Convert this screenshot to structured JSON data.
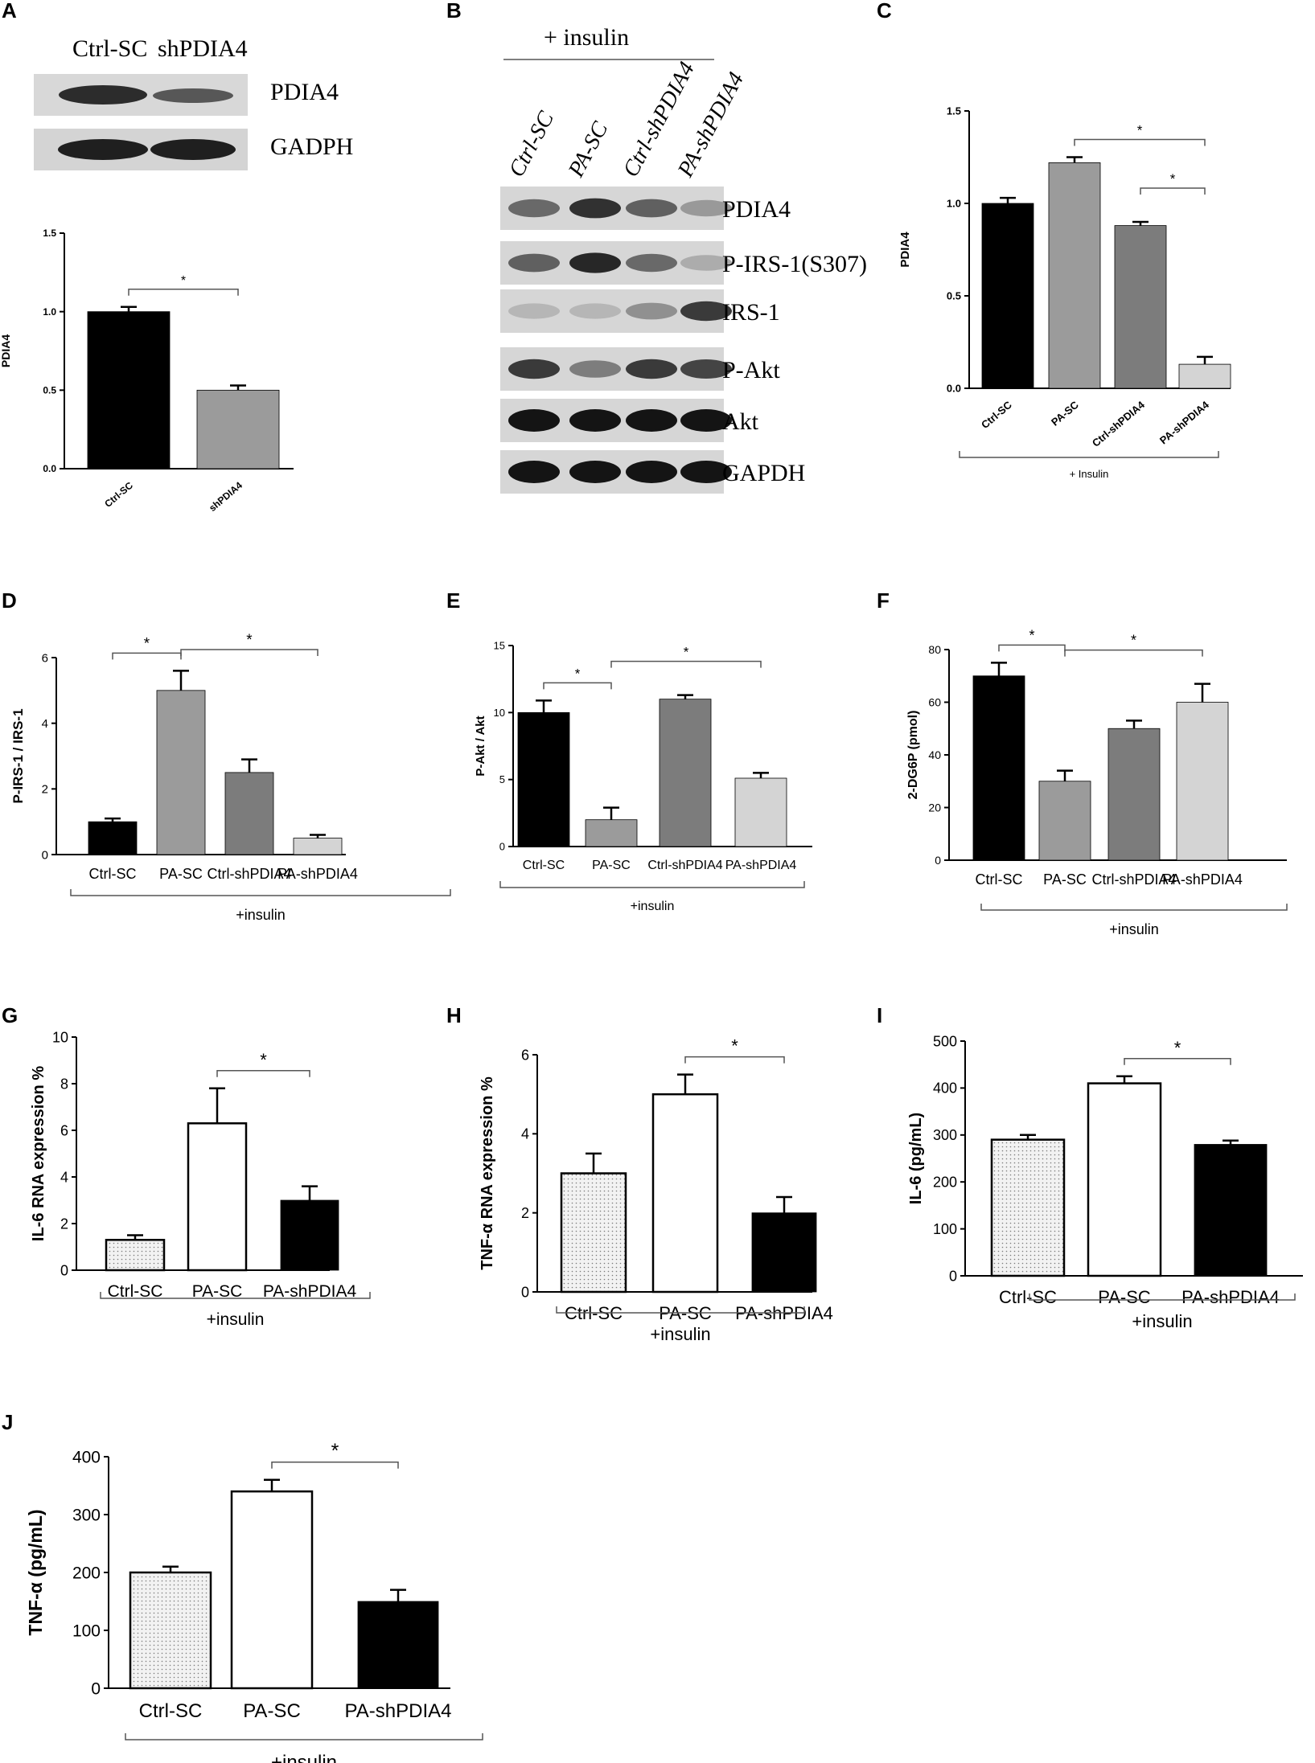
{
  "panel_letters": [
    "A",
    "B",
    "C",
    "D",
    "E",
    "F",
    "G",
    "H",
    "I",
    "J"
  ],
  "blot_a": {
    "lanes": [
      "Ctrl-SC",
      "shPDIA4"
    ],
    "bands": [
      "PDIA4",
      "GADPH"
    ]
  },
  "blot_b": {
    "header": "+ insulin",
    "lanes": [
      "Ctrl-SC",
      "PA-SC",
      "Ctrl-shPDIA4",
      "PA-shPDIA4"
    ],
    "bands": [
      "PDIA4",
      "P-IRS-1(S307)",
      "IRS-1",
      "P-Akt",
      "Akt",
      "GAPDH"
    ]
  },
  "colors": {
    "black": "#000000",
    "mid_gray": "#9b9b9b",
    "dark_gray": "#7c7c7c",
    "light_gray": "#d4d4d4",
    "dotted_fill": "#ececec"
  },
  "chart_data": [
    {
      "panel": "A",
      "type": "bar",
      "categories": [
        "Ctrl-SC",
        "shPDIA4"
      ],
      "values": [
        1.0,
        0.5
      ],
      "errors": [
        0.03,
        0.03
      ],
      "fills": [
        "black",
        "mid_gray"
      ],
      "ylabel": "PDIA4",
      "ylim": [
        0,
        1.5
      ],
      "yticks": [
        "0.0",
        "0.5",
        "1.0",
        "1.5"
      ],
      "significance": [
        {
          "between": [
            0,
            1
          ],
          "label": "*"
        }
      ],
      "group_label": ""
    },
    {
      "panel": "C",
      "type": "bar",
      "categories": [
        "Ctrl-SC",
        "PA-SC",
        "Ctrl-shPDIA4",
        "PA-shPDIA4"
      ],
      "values": [
        1.0,
        1.22,
        0.88,
        0.13
      ],
      "errors": [
        0.03,
        0.03,
        0.02,
        0.04
      ],
      "fills": [
        "black",
        "mid_gray",
        "dark_gray",
        "light_gray"
      ],
      "ylabel": "PDIA4",
      "ylim": [
        0,
        1.5
      ],
      "yticks": [
        "0.0",
        "0.5",
        "1.0",
        "1.5"
      ],
      "significance": [
        {
          "between": [
            1,
            3
          ],
          "label": "*"
        },
        {
          "between": [
            2,
            3
          ],
          "label": "*"
        }
      ],
      "group_label": "+ Insulin"
    },
    {
      "panel": "D",
      "type": "bar",
      "categories": [
        "Ctrl-SC",
        "PA-SC",
        "Ctrl-shPDIA4",
        "PA-shPDIA4"
      ],
      "values": [
        1.0,
        5.0,
        2.5,
        0.5
      ],
      "errors": [
        0.1,
        0.6,
        0.4,
        0.1
      ],
      "fills": [
        "black",
        "mid_gray",
        "dark_gray",
        "light_gray"
      ],
      "ylabel": "P-IRS-1 / IRS-1",
      "ylim": [
        0,
        6
      ],
      "yticks": [
        "0",
        "2",
        "4",
        "6"
      ],
      "significance": [
        {
          "between": [
            0,
            1
          ],
          "label": "*"
        },
        {
          "between": [
            1,
            3
          ],
          "label": "*"
        }
      ],
      "group_label": "+insulin"
    },
    {
      "panel": "E",
      "type": "bar",
      "categories": [
        "Ctrl-SC",
        "PA-SC",
        "Ctrl-shPDIA4",
        "PA-shPDIA4"
      ],
      "values": [
        10.0,
        2.0,
        11.0,
        5.1
      ],
      "errors": [
        0.9,
        0.9,
        0.3,
        0.4
      ],
      "fills": [
        "black",
        "mid_gray",
        "dark_gray",
        "light_gray"
      ],
      "ylabel": "P-Akt / Akt",
      "ylim": [
        0,
        15
      ],
      "yticks": [
        "0",
        "5",
        "10",
        "15"
      ],
      "significance": [
        {
          "between": [
            0,
            1
          ],
          "label": "*"
        },
        {
          "between": [
            1,
            3
          ],
          "label": "*"
        }
      ],
      "group_label": "+insulin"
    },
    {
      "panel": "F",
      "type": "bar",
      "categories": [
        "Ctrl-SC",
        "PA-SC",
        "Ctrl-shPDIA4",
        "PA-shPDIA4"
      ],
      "values": [
        70,
        30,
        50,
        60
      ],
      "errors": [
        5,
        4,
        3,
        7
      ],
      "fills": [
        "black",
        "mid_gray",
        "dark_gray",
        "light_gray"
      ],
      "ylabel": "2-DG6P (pmol)",
      "ylim": [
        0,
        80
      ],
      "yticks": [
        "0",
        "20",
        "40",
        "60",
        "80"
      ],
      "significance": [
        {
          "between": [
            0,
            1
          ],
          "label": "*"
        },
        {
          "between": [
            1,
            3
          ],
          "label": "*"
        }
      ],
      "group_label": "+insulin"
    },
    {
      "panel": "G",
      "type": "bar",
      "categories": [
        "Ctrl-SC",
        "PA-SC",
        "PA-shPDIA4"
      ],
      "values": [
        1.3,
        6.3,
        3.0
      ],
      "errors": [
        0.2,
        1.5,
        0.6
      ],
      "fills": [
        "dotted",
        "white",
        "black"
      ],
      "ylabel": "IL-6 RNA expression %",
      "ylim": [
        0,
        10
      ],
      "yticks": [
        "0",
        "2",
        "4",
        "6",
        "8",
        "10"
      ],
      "significance": [
        {
          "between": [
            1,
            2
          ],
          "label": "*"
        }
      ],
      "group_label": "+insulin"
    },
    {
      "panel": "H",
      "type": "bar",
      "categories": [
        "Ctrl-SC",
        "PA-SC",
        "PA-shPDIA4"
      ],
      "values": [
        3.0,
        5.0,
        2.0
      ],
      "errors": [
        0.5,
        0.5,
        0.4
      ],
      "fills": [
        "dotted",
        "white",
        "black"
      ],
      "ylabel": "TNF-α RNA expression %",
      "ylim": [
        0,
        6
      ],
      "yticks": [
        "0",
        "2",
        "4",
        "6"
      ],
      "significance": [
        {
          "between": [
            1,
            2
          ],
          "label": "*"
        }
      ],
      "group_label": "+insulin"
    },
    {
      "panel": "I",
      "type": "bar",
      "categories": [
        "Ctrl-SC",
        "PA-SC",
        "PA-shPDIA4"
      ],
      "values": [
        290,
        410,
        280
      ],
      "errors": [
        10,
        15,
        8
      ],
      "fills": [
        "dotted",
        "white",
        "black"
      ],
      "ylabel": "IL-6 (pg/mL)",
      "ylim": [
        0,
        500
      ],
      "yticks": [
        "0",
        "100",
        "200",
        "300",
        "400",
        "500"
      ],
      "significance": [
        {
          "between": [
            1,
            2
          ],
          "label": "*"
        }
      ],
      "group_label": "+insulin"
    },
    {
      "panel": "J",
      "type": "bar",
      "categories": [
        "Ctrl-SC",
        "PA-SC",
        "PA-shPDIA4"
      ],
      "values": [
        200,
        340,
        150
      ],
      "errors": [
        10,
        20,
        20
      ],
      "fills": [
        "dotted",
        "white",
        "black"
      ],
      "ylabel": "TNF-α (pg/mL)",
      "ylim": [
        0,
        400
      ],
      "yticks": [
        "0",
        "100",
        "200",
        "300",
        "400"
      ],
      "significance": [
        {
          "between": [
            1,
            2
          ],
          "label": "*"
        }
      ],
      "group_label": "+insulin"
    }
  ]
}
